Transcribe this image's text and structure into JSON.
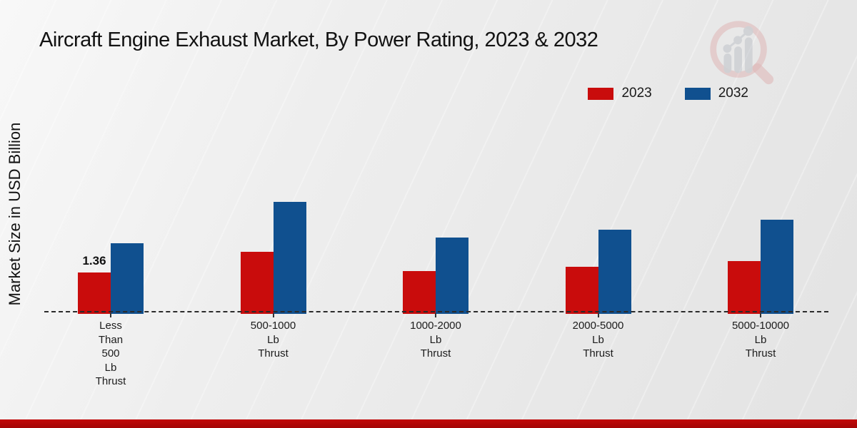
{
  "title": "Aircraft Engine Exhaust Market, By Power Rating, 2023 & 2032",
  "y_axis_label": "Market Size in USD Billion",
  "legend": {
    "items": [
      {
        "label": "2023",
        "color": "#c90c0c"
      },
      {
        "label": "2032",
        "color": "#10508f"
      }
    ]
  },
  "colors": {
    "series_2023": "#c90c0c",
    "series_2032": "#10508f",
    "bottom_strip": "#b30808",
    "baseline": "#2b2b2b"
  },
  "icons": {
    "logo": "magnifier-bar-chart-watermark"
  },
  "chart_data": {
    "type": "bar",
    "title": "Aircraft Engine Exhaust Market, By Power Rating, 2023 & 2032",
    "xlabel": "",
    "ylabel": "Market Size in USD Billion",
    "units": "USD Billion",
    "categories": [
      "Less Than 500 Lb Thrust",
      "500-1000 Lb Thrust",
      "1000-2000 Lb Thrust",
      "2000-5000 Lb Thrust",
      "5000-10000 Lb Thrust"
    ],
    "category_label_lines": [
      [
        "Less",
        "Than",
        "500",
        "Lb",
        "Thrust"
      ],
      [
        "500-1000",
        "Lb",
        "Thrust"
      ],
      [
        "1000-2000",
        "Lb",
        "Thrust"
      ],
      [
        "2000-5000",
        "Lb",
        "Thrust"
      ],
      [
        "5000-10000",
        "Lb",
        "Thrust"
      ]
    ],
    "series": [
      {
        "name": "2023",
        "color": "#c90c0c",
        "values": [
          1.36,
          2.06,
          1.41,
          1.55,
          1.75
        ]
      },
      {
        "name": "2032",
        "color": "#10508f",
        "values": [
          2.36,
          3.76,
          2.55,
          2.82,
          3.16
        ]
      }
    ],
    "data_labels": [
      {
        "series": "2023",
        "category_index": 0,
        "text": "1.36"
      }
    ],
    "ylim": [
      0,
      4
    ],
    "grid": false,
    "axis_line_style": "dashed",
    "legend_position": "top-right"
  }
}
